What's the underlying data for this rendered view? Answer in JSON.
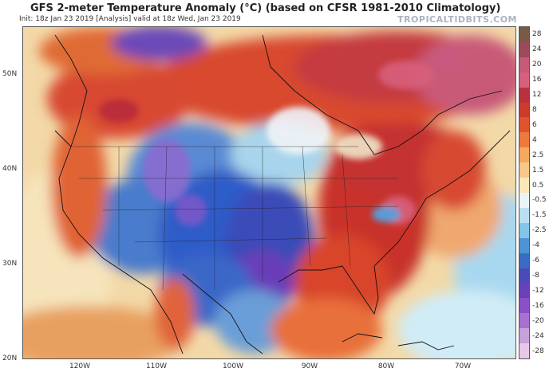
{
  "header": {
    "title": "GFS 2-meter Temperature Anomaly (°C) (based on CFSR 1981-2010 Climatology)",
    "subtitle": "Init: 18z Jan 23 2019   [Analysis]   valid at 18z Wed, Jan 23 2019",
    "site": "TROPICALTIDBITS.COM"
  },
  "map": {
    "lat_labels": [
      "50N",
      "40N",
      "30N",
      "20N"
    ],
    "lon_labels": [
      "120W",
      "110W",
      "100W",
      "90W",
      "80W",
      "70W"
    ]
  },
  "colorbar": {
    "labels": [
      "28",
      "24",
      "20",
      "16",
      "12",
      "8",
      "6",
      "4",
      "2.5",
      "1.5",
      "0.5",
      "-0.5",
      "-1.5",
      "-2.5",
      "-4",
      "-6",
      "-8",
      "-12",
      "-16",
      "-20",
      "-24",
      "-28"
    ],
    "colors": [
      "#7a5a44",
      "#9c4a5a",
      "#c65a78",
      "#d8607c",
      "#b8323e",
      "#cc3a2a",
      "#e0532c",
      "#ec7a3c",
      "#f4a860",
      "#f8c888",
      "#fbe6b8",
      "#e8f4f8",
      "#b8e0f0",
      "#84c4e8",
      "#4e94d4",
      "#3a6cc4",
      "#4a4ab8",
      "#6a40b8",
      "#8a50c8",
      "#a870d0",
      "#c8a0dc",
      "#e8c8e8"
    ]
  },
  "colors": {
    "warm": "#d23a2a",
    "cold": "#2e5cc8",
    "neutral": "#f3d9a8"
  }
}
